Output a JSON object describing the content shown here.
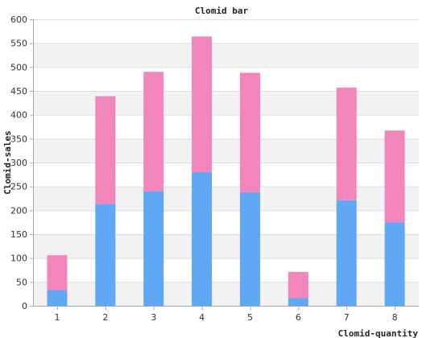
{
  "chart_data": {
    "type": "bar",
    "stacked": true,
    "title": "Clomid bar",
    "xlabel": "Clomid-quantity",
    "ylabel": "Clomid-sales",
    "categories": [
      "1",
      "2",
      "3",
      "4",
      "5",
      "6",
      "7",
      "8"
    ],
    "ylim": [
      0,
      600
    ],
    "yticks": [
      0,
      50,
      100,
      150,
      200,
      250,
      300,
      350,
      400,
      450,
      500,
      550,
      600
    ],
    "grid": true,
    "series": [
      {
        "color": "#60a8f5",
        "values": [
          33,
          213,
          240,
          280,
          238,
          16,
          221,
          175
        ]
      },
      {
        "color": "#f285bc",
        "values": [
          73,
          226,
          250,
          284,
          250,
          55,
          236,
          192
        ]
      }
    ],
    "background_band_color": "#f2f2f2",
    "gridline_color": "#dddddd"
  }
}
